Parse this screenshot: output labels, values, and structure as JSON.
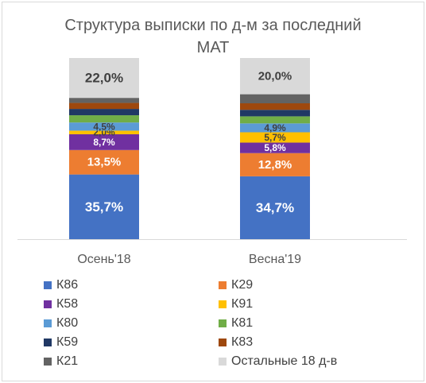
{
  "chart_data": {
    "type": "bar",
    "stacked": true,
    "title_line1": "Структура выписки по д-м за последний",
    "title_line2": "МАТ",
    "categories": [
      "Осень'18",
      "Весна'19"
    ],
    "ylim": [
      0,
      100
    ],
    "grid": false,
    "legend_position": "bottom",
    "series": [
      {
        "name": "К86",
        "color": "#4472c4",
        "values": [
          35.7,
          34.7
        ],
        "labels": [
          "35,7%",
          "34,7%"
        ]
      },
      {
        "name": "К29",
        "color": "#ed7d31",
        "values": [
          13.5,
          12.8
        ],
        "labels": [
          "13,5%",
          "12,8%"
        ]
      },
      {
        "name": "К58",
        "color": "#7030a0",
        "values": [
          8.7,
          5.8
        ],
        "labels": [
          "8,7%",
          "5,8%"
        ]
      },
      {
        "name": "К91",
        "color": "#ffc000",
        "values": [
          2.0,
          5.7
        ],
        "labels": [
          "2,0%",
          "5,7%"
        ]
      },
      {
        "name": "К80",
        "color": "#5b9bd5",
        "values": [
          4.5,
          4.9
        ],
        "labels": [
          "4,5%",
          "4,9%"
        ]
      },
      {
        "name": "К81",
        "color": "#70ad47",
        "values": [
          4.0,
          3.9
        ],
        "labels": [
          "",
          ""
        ]
      },
      {
        "name": "К59",
        "color": "#203864",
        "values": [
          3.5,
          3.6
        ],
        "labels": [
          "",
          ""
        ]
      },
      {
        "name": "К83",
        "color": "#9e480e",
        "values": [
          3.3,
          3.6
        ],
        "labels": [
          "",
          ""
        ]
      },
      {
        "name": "К21",
        "color": "#636363",
        "values": [
          2.8,
          5.0
        ],
        "labels": [
          "",
          ""
        ]
      },
      {
        "name": "Остальные 18 д-в",
        "color": "#d9d9d9",
        "values": [
          22.0,
          20.0
        ],
        "labels": [
          "22,0%",
          "20,0%"
        ]
      }
    ]
  }
}
